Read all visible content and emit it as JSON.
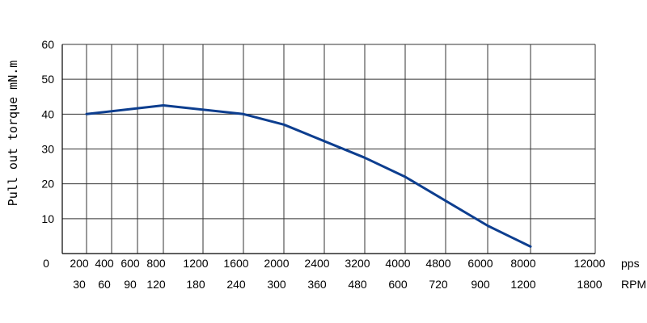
{
  "chart_data": {
    "type": "line",
    "title": "",
    "ylabel": "Pull out torque mN.m",
    "ylim": [
      0,
      60
    ],
    "yticks": [
      10,
      20,
      30,
      40,
      50,
      60
    ],
    "y_origin_label": "0",
    "x_ticks_pps": [
      "200",
      "400",
      "600",
      "800",
      "1200",
      "1600",
      "2000",
      "2400",
      "3200",
      "4000",
      "4800",
      "6000",
      "8000",
      "12000"
    ],
    "x_ticks_rpm": [
      "30",
      "60",
      "90",
      "120",
      "180",
      "240",
      "300",
      "360",
      "480",
      "600",
      "720",
      "900",
      "1200",
      "1800"
    ],
    "x_unit_pps": "pps",
    "x_unit_rpm": "RPM",
    "grid": true,
    "line_color": "#0d3e8f",
    "series": [
      {
        "x": [
          "200",
          "800",
          "1600",
          "2000",
          "3200",
          "4000",
          "6000",
          "8000"
        ],
        "values": [
          40,
          42.5,
          40,
          37,
          27.5,
          22,
          8,
          2
        ]
      }
    ]
  }
}
